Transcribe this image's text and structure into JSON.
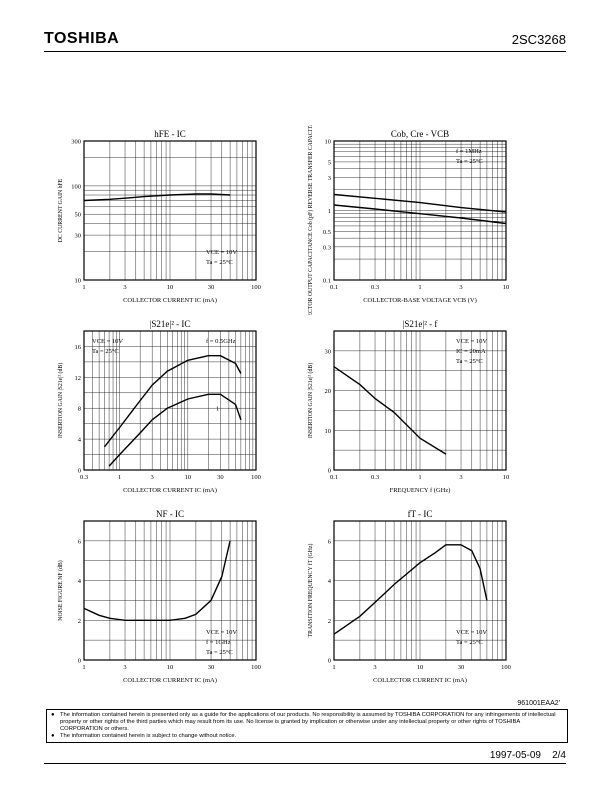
{
  "header": {
    "brand": "TOSHIBA",
    "part_number": "2SC3268"
  },
  "chart_data": [
    {
      "type": "line",
      "title": "hFE - IC",
      "xlabel": "COLLECTOR CURRENT   IC   (mA)",
      "ylabel": "DC CURRENT GAIN   hFE",
      "xscale": "log",
      "yscale": "log",
      "xlim": [
        1,
        100
      ],
      "ylim": [
        10,
        300
      ],
      "xticks": [
        1,
        3,
        10,
        30,
        100
      ],
      "xticklabels": [
        "1",
        "3",
        "10",
        "30",
        "100"
      ],
      "yticks": [
        10,
        30,
        50,
        100,
        300
      ],
      "yticklabels": [
        "10",
        "30",
        "50",
        "100",
        "300"
      ],
      "series": [
        {
          "x": [
            1,
            2,
            3,
            5,
            10,
            20,
            30,
            50
          ],
          "y": [
            70,
            72,
            74,
            77,
            80,
            82,
            82,
            80
          ]
        }
      ],
      "annotations": [
        {
          "text": "VCE = 10V",
          "position": "bottom-right"
        },
        {
          "text": "Ta = 25°C",
          "position": "bottom-right"
        }
      ]
    },
    {
      "type": "line",
      "title": "Cob, Cre - VCB",
      "xlabel": "COLLECTOR-BASE VOLTAGE   VCB   (V)",
      "ylabel": "COLLECTOR OUTPUT CAPACITANCE Cob (pF)  REVERSE TRANSFER CAPACITANCE Cre (pF)",
      "xscale": "log",
      "yscale": "log",
      "xlim": [
        0.1,
        10
      ],
      "ylim": [
        0.1,
        10
      ],
      "xticks": [
        0.1,
        0.3,
        1,
        3,
        10
      ],
      "xticklabels": [
        "0.1",
        "0.3",
        "1",
        "3",
        "10"
      ],
      "yticks": [
        0.1,
        0.3,
        0.5,
        1,
        3,
        5,
        10
      ],
      "yticklabels": [
        "0.1",
        "0.3",
        "0.5",
        "1",
        "3",
        "5",
        "10"
      ],
      "series": [
        {
          "name": "Cob",
          "x": [
            0.1,
            0.3,
            1,
            3,
            10
          ],
          "y": [
            1.7,
            1.5,
            1.3,
            1.1,
            0.95
          ]
        },
        {
          "name": "Cre",
          "x": [
            0.1,
            0.3,
            1,
            3,
            10
          ],
          "y": [
            1.2,
            1.05,
            0.9,
            0.78,
            0.65
          ]
        }
      ],
      "annotations": [
        {
          "text": "f = 1MHz",
          "position": "top-right"
        },
        {
          "text": "Ta = 25°C",
          "position": "top-right"
        }
      ]
    },
    {
      "type": "line",
      "title": "|S21e|² - IC",
      "xlabel": "COLLECTOR CURRENT   IC   (mA)",
      "ylabel": "INSERTION GAIN   |S21e|²   (dB)",
      "xscale": "log",
      "yscale": "linear",
      "xlim": [
        0.3,
        100
      ],
      "ylim": [
        0,
        18
      ],
      "xticks": [
        0.3,
        1,
        3,
        10,
        30,
        100
      ],
      "xticklabels": [
        "0.3",
        "1",
        "3",
        "10",
        "30",
        "100"
      ],
      "yticks": [
        0,
        4,
        8,
        12,
        16
      ],
      "yticklabels": [
        "0",
        "4",
        "8",
        "12",
        "16"
      ],
      "series": [
        {
          "name": "f = 0.5GHz",
          "x": [
            0.6,
            1,
            2,
            3,
            5,
            10,
            20,
            30,
            50,
            60
          ],
          "y": [
            3,
            5.5,
            9,
            11,
            12.8,
            14.2,
            14.8,
            14.8,
            13.8,
            12.5
          ]
        },
        {
          "name": "1",
          "x": [
            0.7,
            1,
            2,
            3,
            5,
            10,
            20,
            30,
            50,
            60
          ],
          "y": [
            0.5,
            2,
            4.8,
            6.5,
            8,
            9.2,
            9.8,
            9.8,
            8.5,
            6.5
          ]
        }
      ],
      "annotations": [
        {
          "text": "VCE = 10V",
          "position": "top-left"
        },
        {
          "text": "Ta = 25°C",
          "position": "top-left"
        },
        {
          "text": "f = 0.5GHz",
          "position": "top-right"
        },
        {
          "text": "1",
          "position": "center-right"
        }
      ]
    },
    {
      "type": "line",
      "title": "|S21e|² - f",
      "xlabel": "FREQUENCY   f   (GHz)",
      "ylabel": "INSERTION GAIN   |S21e|²   (dB)",
      "xscale": "log",
      "yscale": "linear",
      "xlim": [
        0.1,
        10
      ],
      "ylim": [
        0,
        35
      ],
      "xticks": [
        0.1,
        0.3,
        1,
        3,
        10
      ],
      "xticklabels": [
        "0.1",
        "0.3",
        "1",
        "3",
        "10"
      ],
      "yticks": [
        0,
        10,
        20,
        30
      ],
      "yticklabels": [
        "0",
        "10",
        "20",
        "30"
      ],
      "series": [
        {
          "x": [
            0.1,
            0.2,
            0.3,
            0.5,
            1,
            2
          ],
          "y": [
            26,
            21.5,
            18,
            14.5,
            8,
            4
          ]
        }
      ],
      "annotations": [
        {
          "text": "VCE = 10V",
          "position": "top-right"
        },
        {
          "text": "IC = 20mA",
          "position": "top-right"
        },
        {
          "text": "Ta = 25°C",
          "position": "top-right"
        }
      ]
    },
    {
      "type": "line",
      "title": "NF - IC",
      "xlabel": "COLLECTOR CURRENT   IC   (mA)",
      "ylabel": "NOISE FIGURE   NF   (dB)",
      "xscale": "log",
      "yscale": "linear",
      "xlim": [
        1,
        100
      ],
      "ylim": [
        0,
        7
      ],
      "xticks": [
        1,
        3,
        10,
        30,
        100
      ],
      "xticklabels": [
        "1",
        "3",
        "10",
        "30",
        "100"
      ],
      "yticks": [
        0,
        2,
        4,
        6
      ],
      "yticklabels": [
        "0",
        "2",
        "4",
        "6"
      ],
      "series": [
        {
          "x": [
            1,
            1.5,
            2,
            3,
            5,
            10,
            15,
            20,
            30,
            40,
            50
          ],
          "y": [
            2.6,
            2.25,
            2.1,
            2.0,
            2.0,
            2.0,
            2.1,
            2.3,
            3.0,
            4.2,
            6.0
          ]
        }
      ],
      "annotations": [
        {
          "text": "VCE = 10V",
          "position": "bottom-right"
        },
        {
          "text": "f = 1GHz",
          "position": "bottom-right"
        },
        {
          "text": "Ta = 25°C",
          "position": "bottom-right"
        }
      ]
    },
    {
      "type": "line",
      "title": "fT - IC",
      "xlabel": "COLLECTOR CURRENT   IC   (mA)",
      "ylabel": "TRANSITION FREQUENCY   fT   (GHz)",
      "xscale": "log",
      "yscale": "linear",
      "xlim": [
        1,
        100
      ],
      "ylim": [
        0,
        7
      ],
      "xticks": [
        1,
        3,
        10,
        30,
        100
      ],
      "xticklabels": [
        "1",
        "3",
        "10",
        "30",
        "100"
      ],
      "yticks": [
        0,
        2,
        4,
        6
      ],
      "yticklabels": [
        "0",
        "2",
        "4",
        "6"
      ],
      "series": [
        {
          "x": [
            1,
            2,
            3,
            5,
            10,
            15,
            20,
            30,
            40,
            50,
            60
          ],
          "y": [
            1.3,
            2.2,
            2.9,
            3.8,
            4.9,
            5.4,
            5.8,
            5.8,
            5.5,
            4.6,
            3.0
          ]
        }
      ],
      "annotations": [
        {
          "text": "VCE = 10V",
          "position": "bottom-right"
        },
        {
          "text": "Ta = 25°C",
          "position": "bottom-right"
        }
      ]
    }
  ],
  "doc_code": "961001EAA2'",
  "disclaimer": [
    "The information contained herein is presented only as a guide for the applications of our products. No responsibility is assumed by TOSHIBA CORPORATION for any infringements of intellectual property or other rights of the third parties which may result from its use. No license is granted by implication or otherwise under any intellectual property or other rights of TOSHIBA CORPORATION or others.",
    "The information contained herein is subject to change without notice."
  ],
  "footer": {
    "date": "1997-05-09",
    "page": "2/4"
  }
}
